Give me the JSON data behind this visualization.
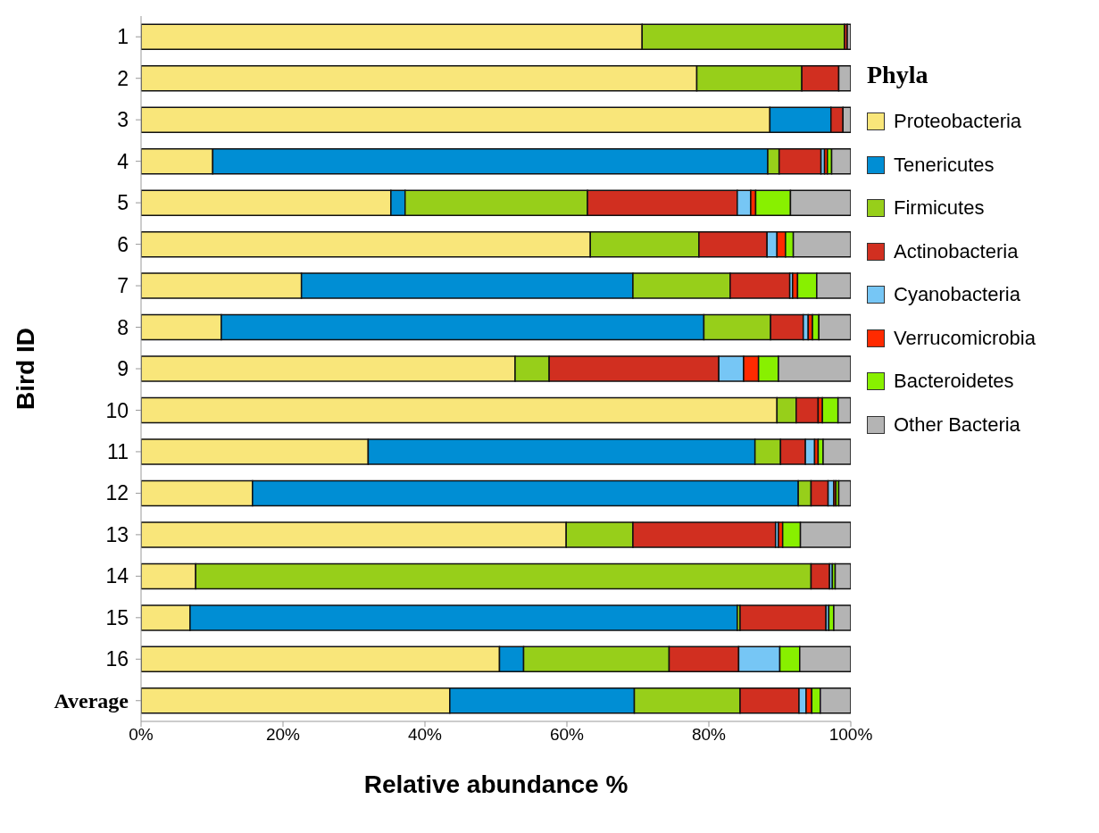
{
  "chart_data": {
    "type": "bar",
    "orientation": "horizontal",
    "stacked": true,
    "xlabel": "Relative abundance %",
    "ylabel": "Bird ID",
    "legend_title": "Phyla",
    "legend": "right",
    "grid": false,
    "categories": [
      "1",
      "2",
      "3",
      "4",
      "5",
      "6",
      "7",
      "8",
      "9",
      "10",
      "11",
      "12",
      "13",
      "14",
      "15",
      "16",
      "Average"
    ],
    "xlim": [
      0,
      100
    ],
    "xticks": [
      {
        "value": 0,
        "label": "0%"
      },
      {
        "value": 20,
        "label": "20%"
      },
      {
        "value": 40,
        "label": "40%"
      },
      {
        "value": 60,
        "label": "60%"
      },
      {
        "value": 80,
        "label": "80%"
      },
      {
        "value": 100,
        "label": "100%"
      }
    ],
    "series": [
      {
        "name": "Proteobacteria",
        "color": "#f9e67a",
        "values": [
          70.6,
          78.3,
          88.6,
          10.1,
          35.2,
          63.3,
          22.6,
          11.3,
          52.7,
          89.6,
          32.0,
          15.7,
          59.9,
          7.7,
          6.9,
          50.5,
          43.5
        ]
      },
      {
        "name": "Tenericutes",
        "color": "#008ed4",
        "values": [
          0,
          0,
          8.6,
          78.2,
          2.0,
          0,
          46.7,
          68.0,
          0,
          0,
          54.5,
          76.9,
          0,
          0,
          77.1,
          3.4,
          26.0
        ]
      },
      {
        "name": "Firmicutes",
        "color": "#97cf1a",
        "values": [
          28.5,
          14.8,
          0,
          1.6,
          25.7,
          15.3,
          13.7,
          9.4,
          4.8,
          2.7,
          3.6,
          1.8,
          9.4,
          86.7,
          0.4,
          20.5,
          14.9
        ]
      },
      {
        "name": "Actinobacteria",
        "color": "#d12f20",
        "values": [
          0.4,
          5.2,
          1.7,
          5.9,
          21.1,
          9.6,
          8.4,
          4.6,
          23.9,
          3.1,
          3.5,
          2.4,
          20.1,
          2.6,
          12.1,
          9.8,
          8.3
        ]
      },
      {
        "name": "Cyanobacteria",
        "color": "#76c6f5",
        "values": [
          0,
          0,
          0,
          0.5,
          1.9,
          1.4,
          0.4,
          0.7,
          3.5,
          0,
          1.3,
          0.8,
          0.4,
          0.4,
          0.4,
          5.8,
          1.0
        ]
      },
      {
        "name": "Verrucomicrobia",
        "color": "#ff2a00",
        "values": [
          0,
          0,
          0,
          0.4,
          0.7,
          1.2,
          0.7,
          0.6,
          2.1,
          0.6,
          0.5,
          0.3,
          0.6,
          null,
          null,
          0,
          0.8
        ]
      },
      {
        "name": "Bacteroidetes",
        "color": "#88f000",
        "values": [
          0,
          0,
          0,
          0.6,
          4.9,
          1.1,
          2.7,
          0.9,
          2.8,
          2.2,
          0.7,
          0.4,
          2.5,
          0.4,
          0.7,
          2.8,
          1.2
        ]
      },
      {
        "name": "Other Bacteria",
        "color": "#b4b4b4",
        "values": [
          0.5,
          1.7,
          1.1,
          2.8,
          8.5,
          8.1,
          4.8,
          4.5,
          10.2,
          1.8,
          3.9,
          1.7,
          7.1,
          2.2,
          2.4,
          7.2,
          4.3
        ]
      }
    ]
  }
}
